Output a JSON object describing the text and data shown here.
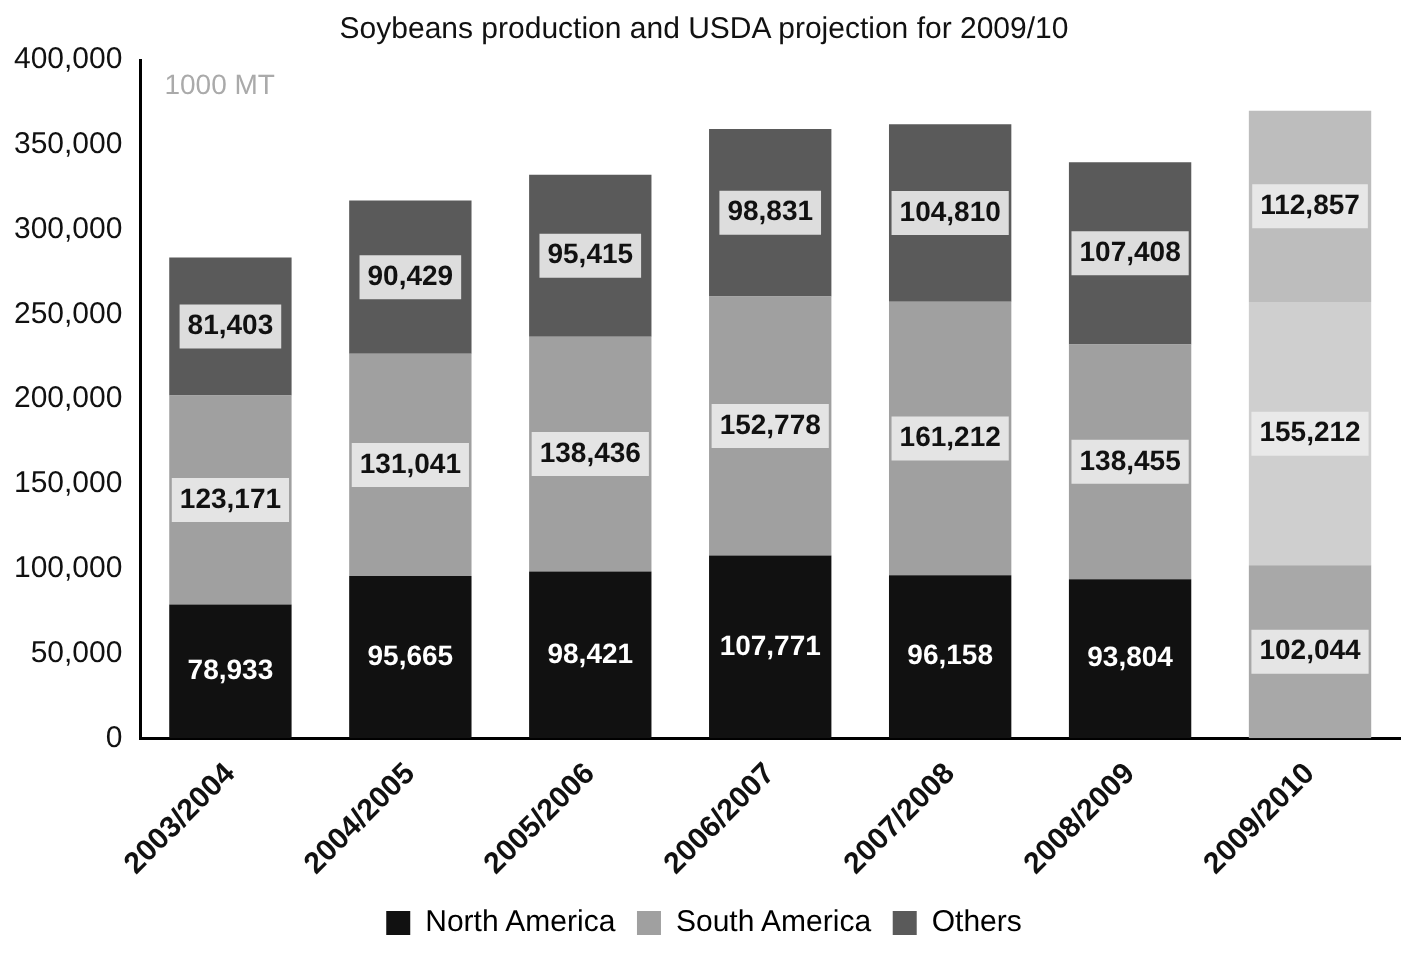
{
  "chart_data": {
    "type": "bar",
    "title": "Soybeans production and USDA projection for 2009/10",
    "annotations": [
      "1000 MT"
    ],
    "categories": [
      "2003/2004",
      "2004/2005",
      "2005/2006",
      "2006/2007",
      "2007/2008",
      "2008/2009",
      "2009/2010"
    ],
    "stacked": true,
    "legend": "bottom",
    "grid": false,
    "ylim": [
      0,
      400000
    ],
    "yticks": [
      {
        "value": 0,
        "label": "0"
      },
      {
        "value": 50000,
        "label": "50,000"
      },
      {
        "value": 100000,
        "label": "100,000"
      },
      {
        "value": 150000,
        "label": "150,000"
      },
      {
        "value": 200000,
        "label": "200,000"
      },
      {
        "value": 250000,
        "label": "250,000"
      },
      {
        "value": 300000,
        "label": "300,000"
      },
      {
        "value": 350000,
        "label": "350,000"
      },
      {
        "value": 400000,
        "label": "400,000"
      }
    ],
    "series": [
      {
        "name": "North America",
        "color": "#111111",
        "colors": [
          "#111111",
          "#111111",
          "#111111",
          "#111111",
          "#111111",
          "#111111",
          "#a8a8a8"
        ],
        "values": [
          78933,
          95665,
          98421,
          107771,
          96158,
          93804,
          102044
        ],
        "value_labels": [
          "78,933",
          "95,665",
          "98,421",
          "107,771",
          "96,158",
          "93,804",
          "102,044"
        ]
      },
      {
        "name": "South America",
        "color": "#a0a0a0",
        "colors": [
          "#a0a0a0",
          "#a0a0a0",
          "#a0a0a0",
          "#a0a0a0",
          "#a0a0a0",
          "#a0a0a0",
          "#cfcfcf"
        ],
        "values": [
          123171,
          131041,
          138436,
          152778,
          161212,
          138455,
          155212
        ],
        "value_labels": [
          "123,171",
          "131,041",
          "138,436",
          "152,778",
          "161,212",
          "138,455",
          "155,212"
        ]
      },
      {
        "name": "Others",
        "color": "#5a5a5a",
        "colors": [
          "#5a5a5a",
          "#5a5a5a",
          "#5a5a5a",
          "#5a5a5a",
          "#5a5a5a",
          "#5a5a5a",
          "#bdbdbd"
        ],
        "values": [
          81403,
          90429,
          95415,
          98831,
          104810,
          107408,
          112857
        ],
        "value_labels": [
          "81,403",
          "90,429",
          "95,415",
          "98,831",
          "104,810",
          "107,408",
          "112,857"
        ]
      }
    ]
  }
}
